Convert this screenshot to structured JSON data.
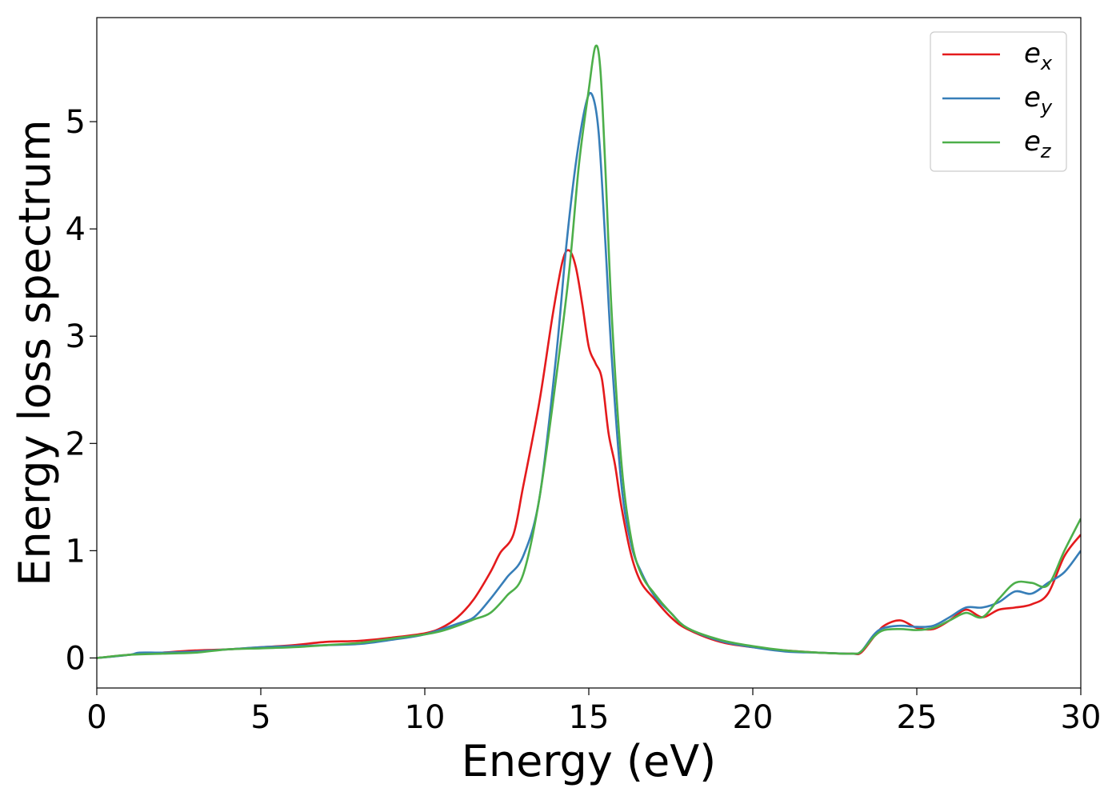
{
  "chart_data": {
    "type": "line",
    "title": "",
    "xlabel": "Energy (eV)",
    "ylabel": "Energy loss spectrum",
    "xlim": [
      0,
      30
    ],
    "ylim": [
      -0.28,
      5.97
    ],
    "xticks": [
      0,
      5,
      10,
      15,
      20,
      25,
      30
    ],
    "xtick_labels": [
      "0",
      "5",
      "10",
      "15",
      "20",
      "25",
      "30"
    ],
    "yticks": [
      0,
      1,
      2,
      3,
      4,
      5
    ],
    "ytick_labels": [
      "0",
      "1",
      "2",
      "3",
      "4",
      "5"
    ],
    "grid": false,
    "legend_position": "top-right",
    "series": [
      {
        "name": "e",
        "subscript": "x",
        "color": "#e41a1c",
        "x": [
          0,
          1,
          2,
          3,
          4,
          5,
          6,
          7,
          8,
          9,
          10,
          10.5,
          11,
          11.5,
          12,
          12.3,
          12.7,
          13,
          13.5,
          13.9,
          14.2,
          14.4,
          14.6,
          14.8,
          15,
          15.2,
          15.4,
          15.6,
          15.8,
          16,
          16.3,
          16.6,
          17,
          17.5,
          18,
          19,
          20,
          21,
          22,
          23,
          23.3,
          23.7,
          24,
          24.5,
          25,
          25.5,
          26,
          26.5,
          27,
          27.5,
          28,
          28.5,
          29,
          29.5,
          30
        ],
        "y": [
          0,
          0.03,
          0.05,
          0.07,
          0.08,
          0.1,
          0.12,
          0.15,
          0.16,
          0.19,
          0.23,
          0.28,
          0.38,
          0.55,
          0.8,
          0.98,
          1.15,
          1.6,
          2.4,
          3.2,
          3.7,
          3.8,
          3.65,
          3.3,
          2.9,
          2.75,
          2.6,
          2.1,
          1.8,
          1.4,
          0.95,
          0.7,
          0.55,
          0.38,
          0.27,
          0.15,
          0.1,
          0.07,
          0.05,
          0.04,
          0.05,
          0.2,
          0.3,
          0.35,
          0.28,
          0.27,
          0.35,
          0.45,
          0.38,
          0.45,
          0.47,
          0.5,
          0.6,
          0.95,
          1.15
        ]
      },
      {
        "name": "e",
        "subscript": "y",
        "color": "#377eb8",
        "x": [
          0,
          1,
          1.3,
          2,
          3,
          4,
          5,
          6,
          7,
          8,
          9,
          10,
          11,
          11.5,
          12,
          12.5,
          13,
          13.5,
          14,
          14.3,
          14.6,
          14.9,
          15.1,
          15.3,
          15.5,
          15.7,
          16,
          16.3,
          16.6,
          17,
          17.5,
          18,
          19,
          20,
          21,
          22,
          23,
          23.3,
          23.7,
          24,
          24.5,
          25,
          25.5,
          26,
          26.5,
          27,
          27.5,
          28,
          28.5,
          29,
          29.5,
          30
        ],
        "y": [
          0,
          0.03,
          0.05,
          0.05,
          0.06,
          0.08,
          0.1,
          0.11,
          0.12,
          0.13,
          0.17,
          0.22,
          0.32,
          0.38,
          0.55,
          0.75,
          0.95,
          1.5,
          2.8,
          3.8,
          4.6,
          5.15,
          5.25,
          4.9,
          3.9,
          2.8,
          1.6,
          1.05,
          0.8,
          0.58,
          0.42,
          0.28,
          0.16,
          0.1,
          0.06,
          0.05,
          0.04,
          0.06,
          0.22,
          0.28,
          0.3,
          0.29,
          0.3,
          0.38,
          0.47,
          0.47,
          0.52,
          0.62,
          0.6,
          0.7,
          0.8,
          1.0
        ]
      },
      {
        "name": "e",
        "subscript": "z",
        "color": "#4daf4a",
        "x": [
          0,
          1,
          2,
          3,
          4,
          5,
          6,
          7,
          8,
          9,
          10,
          10.5,
          11,
          11.5,
          12,
          12.5,
          13,
          13.5,
          14,
          14.4,
          14.7,
          15,
          15.2,
          15.35,
          15.5,
          15.7,
          16,
          16.3,
          16.6,
          17,
          17.5,
          18,
          19,
          20,
          21,
          22,
          23,
          23.3,
          23.7,
          24,
          24.5,
          25,
          25.5,
          26,
          26.5,
          27,
          27.5,
          28,
          28.5,
          29,
          29.5,
          30
        ],
        "y": [
          0,
          0.03,
          0.04,
          0.05,
          0.08,
          0.09,
          0.1,
          0.12,
          0.14,
          0.18,
          0.22,
          0.25,
          0.3,
          0.36,
          0.42,
          0.58,
          0.78,
          1.5,
          2.6,
          3.6,
          4.6,
          5.3,
          5.7,
          5.5,
          4.6,
          3.2,
          1.8,
          1.1,
          0.78,
          0.6,
          0.42,
          0.28,
          0.17,
          0.11,
          0.07,
          0.05,
          0.04,
          0.06,
          0.2,
          0.26,
          0.27,
          0.26,
          0.28,
          0.35,
          0.42,
          0.38,
          0.55,
          0.7,
          0.7,
          0.68,
          1.0,
          1.3
        ]
      }
    ]
  }
}
